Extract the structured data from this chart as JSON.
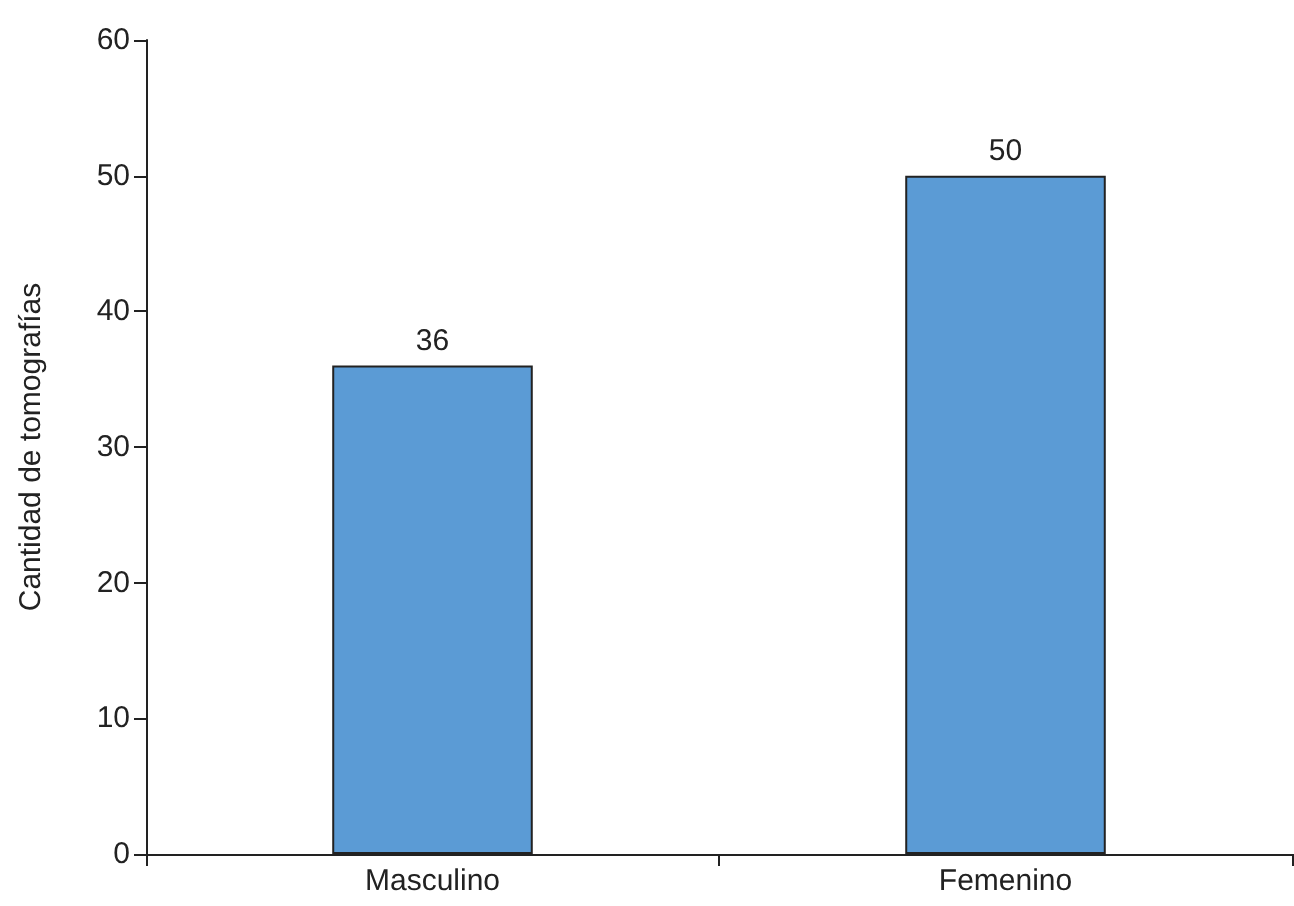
{
  "chart_data": {
    "type": "bar",
    "ylabel": "Cantidad de tomografías",
    "categories": [
      "Masculino",
      "Femenino"
    ],
    "values": [
      36,
      50
    ],
    "color": "#5b9bd5",
    "ylim": [
      0,
      60
    ],
    "yticks": [
      0,
      10,
      20,
      30,
      40,
      50,
      60
    ],
    "grid": false,
    "data_labels": true
  }
}
